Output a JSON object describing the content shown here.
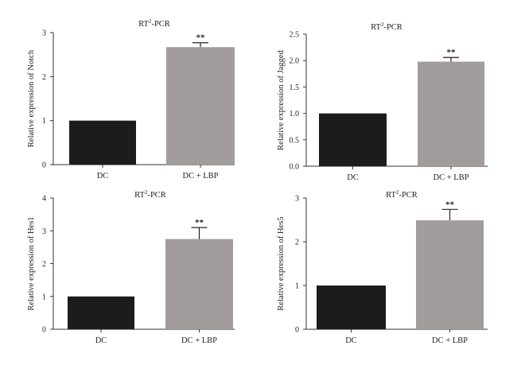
{
  "chart_data": [
    {
      "type": "bar",
      "title": "RT2-PCR",
      "title_parts": [
        "RT",
        "2",
        "-PCR"
      ],
      "categories": [
        "DC",
        "DC + LBP"
      ],
      "values": [
        1.0,
        2.67
      ],
      "errors": [
        0,
        0.1
      ],
      "significance": [
        "",
        "**"
      ],
      "ylabel": "Relative expression of Notch",
      "xlabel": "",
      "ylim": [
        0,
        3
      ],
      "yticks": [
        0,
        1,
        2,
        3
      ],
      "ytick_labels": [
        "0",
        "1",
        "2",
        "3"
      ],
      "colors": [
        "#1c1c1c",
        "#a39c9c"
      ],
      "grid": false
    },
    {
      "type": "bar",
      "title": "RT2-PCR",
      "title_parts": [
        "RT",
        "2",
        "-PCR"
      ],
      "categories": [
        "DC",
        "DC + LBP"
      ],
      "values": [
        1.0,
        1.98
      ],
      "errors": [
        0,
        0.08
      ],
      "significance": [
        "",
        "**"
      ],
      "ylabel": "Relative expression of Jagged",
      "xlabel": "",
      "ylim": [
        0,
        2.5
      ],
      "yticks": [
        0,
        0.5,
        1.0,
        1.5,
        2.0,
        2.5
      ],
      "ytick_labels": [
        "0.0",
        "0.5",
        "1.0",
        "1.5",
        "2.0",
        "2.5"
      ],
      "colors": [
        "#1c1c1c",
        "#a39c9c"
      ],
      "grid": false
    },
    {
      "type": "bar",
      "title": "RT2-PCR",
      "title_parts": [
        "RT",
        "2",
        "-PCR"
      ],
      "categories": [
        "DC",
        "DC + LBP"
      ],
      "values": [
        1.0,
        2.75
      ],
      "errors": [
        0,
        0.35
      ],
      "significance": [
        "",
        "**"
      ],
      "ylabel": "Relative expression of Hes1",
      "xlabel": "",
      "ylim": [
        0,
        4
      ],
      "yticks": [
        0,
        1,
        2,
        3,
        4
      ],
      "ytick_labels": [
        "0",
        "1",
        "2",
        "3",
        "4"
      ],
      "colors": [
        "#1c1c1c",
        "#a39c9c"
      ],
      "grid": false
    },
    {
      "type": "bar",
      "title": "RT2-PCR",
      "title_parts": [
        "RT",
        "2",
        "-PCR"
      ],
      "categories": [
        "DC",
        "DC + LBP"
      ],
      "values": [
        1.0,
        2.49
      ],
      "errors": [
        0,
        0.25
      ],
      "significance": [
        "",
        "**"
      ],
      "ylabel": "Relative expression of Hes5",
      "xlabel": "",
      "ylim": [
        0,
        3
      ],
      "yticks": [
        0,
        1,
        2,
        3
      ],
      "ytick_labels": [
        "0",
        "1",
        "2",
        "3"
      ],
      "colors": [
        "#1c1c1c",
        "#a39c9c"
      ],
      "grid": false
    }
  ]
}
